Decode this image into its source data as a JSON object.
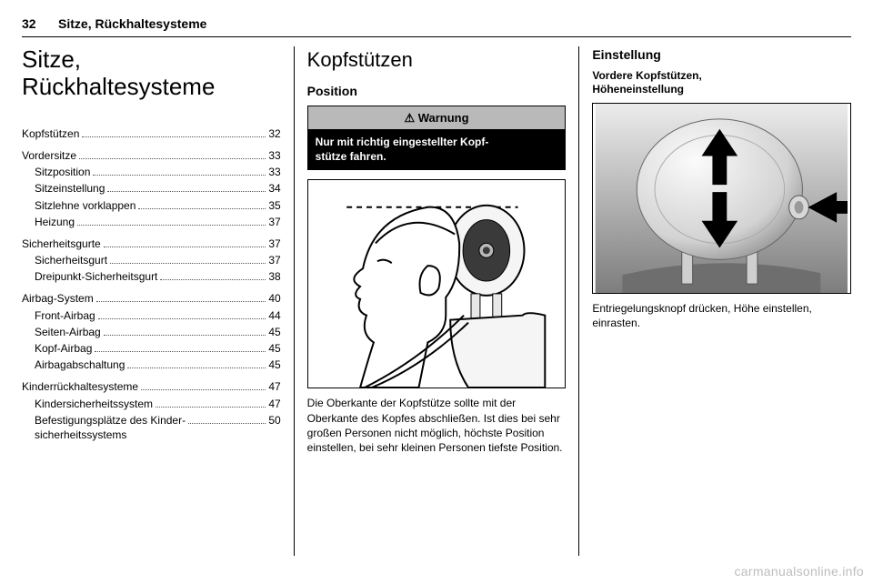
{
  "header": {
    "page_number": "32",
    "section_title": "Sitze, Rückhaltesysteme"
  },
  "col1": {
    "chapter_title": "Sitze,\nRückhaltesysteme",
    "toc": [
      {
        "type": "group",
        "items": [
          {
            "label": "Kopfstützen",
            "page": "32",
            "bold": false
          }
        ]
      },
      {
        "type": "group",
        "items": [
          {
            "label": "Vordersitze",
            "page": "33",
            "bold": false
          },
          {
            "label": "Sitzposition",
            "page": "33",
            "indent": true
          },
          {
            "label": "Sitzeinstellung",
            "page": "34",
            "indent": true
          },
          {
            "label": "Sitzlehne vorklappen",
            "page": "35",
            "indent": true
          },
          {
            "label": "Heizung",
            "page": "37",
            "indent": true
          }
        ]
      },
      {
        "type": "group",
        "items": [
          {
            "label": "Sicherheitsgurte",
            "page": "37",
            "bold": false
          },
          {
            "label": "Sicherheitsgurt",
            "page": "37",
            "indent": true
          },
          {
            "label": "Dreipunkt-Sicherheitsgurt",
            "page": "38",
            "indent": true
          }
        ]
      },
      {
        "type": "group",
        "items": [
          {
            "label": "Airbag-System",
            "page": "40",
            "bold": false
          },
          {
            "label": "Front-Airbag",
            "page": "44",
            "indent": true
          },
          {
            "label": "Seiten-Airbag",
            "page": "45",
            "indent": true
          },
          {
            "label": "Kopf-Airbag",
            "page": "45",
            "indent": true
          },
          {
            "label": "Airbagabschaltung",
            "page": "45",
            "indent": true
          }
        ]
      },
      {
        "type": "group",
        "items": [
          {
            "label": "Kinderrückhaltesysteme",
            "page": "47",
            "bold": false
          },
          {
            "label": "Kindersicherheitssystem",
            "page": "47",
            "indent": true
          },
          {
            "label": "Befestigungsplätze des Kinder-\nsicherheitssystems",
            "page": "50",
            "indent": true
          }
        ]
      }
    ]
  },
  "col2": {
    "heading": "Kopfstützen",
    "subheading": "Position",
    "warning": {
      "symbol": "⚠",
      "title": "Warnung",
      "body": "Nur mit richtig eingestellter Kopf-\nstütze fahren."
    },
    "caption": "Die Oberkante der Kopfstütze sollte mit der Oberkante des Kopfes abschließen. Ist dies bei sehr großen Personen nicht möglich, höchste Position einstellen, bei sehr kleinen Personen tiefste Position.",
    "figure": {
      "colors": {
        "stroke": "#000000",
        "fill_light": "#f7f7f7",
        "fill_dark": "#2b2b2b",
        "dash": "#000000"
      }
    }
  },
  "col3": {
    "heading": "Einstellung",
    "subheading": "Vordere Kopfstützen,\nHöheneinstellung",
    "caption": "Entriegelungsknopf drücken, Höhe einstellen, einrasten.",
    "figure": {
      "colors": {
        "bg_grad_top": "#e8e8e8",
        "bg_grad_bot": "#858585",
        "headrest_light": "#f2f2f2",
        "headrest_shadow": "#9a9a9a",
        "arrow_fill": "#000000",
        "button": "#d6d6d6"
      }
    }
  },
  "watermark": "carmanualsonline.info"
}
